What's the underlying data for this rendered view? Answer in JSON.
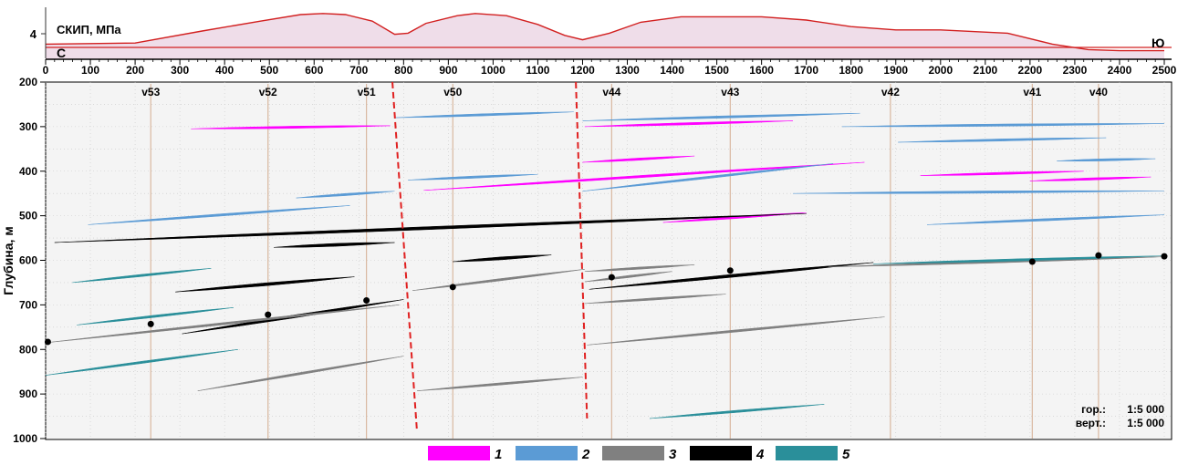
{
  "top_panel": {
    "title": "СКИП, МПа",
    "y_tick": "4",
    "left_end": "С",
    "right_end": "Ю"
  },
  "x_axis": {
    "min": 0,
    "max": 2500,
    "ticks": [
      "0",
      "100",
      "200",
      "300",
      "400",
      "500",
      "600",
      "700",
      "800",
      "900",
      "1000",
      "1100",
      "1200",
      "1300",
      "1400",
      "1500",
      "1600",
      "1700",
      "1800",
      "1900",
      "2000",
      "2100",
      "2200",
      "2300",
      "2400",
      "2500"
    ]
  },
  "y_axis": {
    "label": "Глубина, м",
    "min": 200,
    "max": 1000,
    "ticks": [
      "200",
      "300",
      "400",
      "500",
      "600",
      "700",
      "800",
      "900",
      "1000"
    ]
  },
  "scale": {
    "hor_label": "гор.:",
    "hor_value": "1:5 000",
    "vert_label": "верт.:",
    "vert_value": "1:5 000"
  },
  "legend": [
    {
      "label": "1",
      "color": "#ff00ff"
    },
    {
      "label": "2",
      "color": "#5b9bd5"
    },
    {
      "label": "3",
      "color": "#808080"
    },
    {
      "label": "4",
      "color": "#000000"
    },
    {
      "label": "5",
      "color": "#2a8f9a"
    }
  ],
  "chart_data": {
    "type": "line",
    "colors": {
      "pressure_line": "#d22020",
      "pressure_fill": "#efdde9",
      "fault": "#e02020",
      "well": "#d9b8a0"
    },
    "pressure_profile": [
      [
        0,
        3.4
      ],
      [
        200,
        3.45
      ],
      [
        350,
        4.0
      ],
      [
        480,
        4.45
      ],
      [
        570,
        4.75
      ],
      [
        620,
        4.8
      ],
      [
        670,
        4.75
      ],
      [
        730,
        4.45
      ],
      [
        780,
        3.85
      ],
      [
        810,
        3.9
      ],
      [
        850,
        4.35
      ],
      [
        920,
        4.7
      ],
      [
        960,
        4.8
      ],
      [
        1030,
        4.7
      ],
      [
        1100,
        4.3
      ],
      [
        1160,
        3.8
      ],
      [
        1200,
        3.6
      ],
      [
        1260,
        3.9
      ],
      [
        1330,
        4.4
      ],
      [
        1420,
        4.65
      ],
      [
        1600,
        4.65
      ],
      [
        1700,
        4.5
      ],
      [
        1800,
        4.2
      ],
      [
        1900,
        4.05
      ],
      [
        2000,
        4.05
      ],
      [
        2150,
        3.9
      ],
      [
        2250,
        3.4
      ],
      [
        2330,
        3.15
      ],
      [
        2400,
        3.1
      ],
      [
        2500,
        3.1
      ]
    ],
    "wells": [
      {
        "name": "v53",
        "x": 235
      },
      {
        "name": "v52",
        "x": 497
      },
      {
        "name": "v51",
        "x": 717
      },
      {
        "name": "v50",
        "x": 910
      },
      {
        "name": "v44",
        "x": 1265
      },
      {
        "name": "v43",
        "x": 1530
      },
      {
        "name": "v42",
        "x": 1888
      },
      {
        "name": "v41",
        "x": 2205
      },
      {
        "name": "v40",
        "x": 2353
      }
    ],
    "faults": [
      {
        "top": [
          775,
          200
        ],
        "bottom": [
          830,
          985
        ]
      },
      {
        "top": [
          1185,
          200
        ],
        "bottom": [
          1210,
          955
        ]
      }
    ],
    "seams": [
      {
        "class": 1,
        "from": [
          325,
          305
        ],
        "to": [
          770,
          298
        ]
      },
      {
        "class": 2,
        "from": [
          780,
          280
        ],
        "to": [
          1180,
          267
        ]
      },
      {
        "class": 2,
        "from": [
          1200,
          287
        ],
        "to": [
          1820,
          270
        ]
      },
      {
        "class": 1,
        "from": [
          1205,
          300
        ],
        "to": [
          1670,
          287
        ]
      },
      {
        "class": 2,
        "from": [
          1780,
          300
        ],
        "to": [
          2500,
          293
        ]
      },
      {
        "class": 2,
        "from": [
          1905,
          335
        ],
        "to": [
          2370,
          325
        ]
      },
      {
        "class": 1,
        "from": [
          1200,
          380
        ],
        "to": [
          1450,
          366
        ]
      },
      {
        "class": 2,
        "from": [
          2260,
          377
        ],
        "to": [
          2480,
          372
        ]
      },
      {
        "class": 1,
        "from": [
          1955,
          410
        ],
        "to": [
          2320,
          400
        ]
      },
      {
        "class": 1,
        "from": [
          2200,
          422
        ],
        "to": [
          2470,
          413
        ]
      },
      {
        "class": 2,
        "from": [
          810,
          420
        ],
        "to": [
          1100,
          407
        ]
      },
      {
        "class": 1,
        "from": [
          845,
          443
        ],
        "to": [
          1830,
          380
        ]
      },
      {
        "class": 2,
        "from": [
          1200,
          445
        ],
        "to": [
          1760,
          383
        ]
      },
      {
        "class": 2,
        "from": [
          560,
          460
        ],
        "to": [
          780,
          445
        ]
      },
      {
        "class": 2,
        "from": [
          1670,
          450
        ],
        "to": [
          2500,
          444
        ]
      },
      {
        "class": 2,
        "from": [
          95,
          520
        ],
        "to": [
          680,
          477
        ]
      },
      {
        "class": 2,
        "from": [
          1970,
          520
        ],
        "to": [
          2500,
          498
        ]
      },
      {
        "class": 1,
        "from": [
          1380,
          515
        ],
        "to": [
          1700,
          493
        ]
      },
      {
        "class": 4,
        "from": [
          20,
          560
        ],
        "to": [
          1700,
          495
        ]
      },
      {
        "class": 4,
        "from": [
          510,
          571
        ],
        "to": [
          780,
          560
        ]
      },
      {
        "class": 4,
        "from": [
          910,
          603
        ],
        "to": [
          1130,
          588
        ]
      },
      {
        "class": 3,
        "from": [
          1205,
          625
        ],
        "to": [
          1450,
          610
        ]
      },
      {
        "class": 3,
        "from": [
          1205,
          648
        ],
        "to": [
          1400,
          625
        ]
      },
      {
        "class": 4,
        "from": [
          1215,
          665
        ],
        "to": [
          1850,
          605
        ]
      },
      {
        "class": 3,
        "from": [
          1750,
          615
        ],
        "to": [
          2500,
          592
        ]
      },
      {
        "class": 5,
        "from": [
          1850,
          608
        ],
        "to": [
          2500,
          590
        ]
      },
      {
        "class": 3,
        "from": [
          820,
          668
        ],
        "to": [
          1205,
          620
        ]
      },
      {
        "class": 4,
        "from": [
          290,
          671
        ],
        "to": [
          690,
          637
        ]
      },
      {
        "class": 5,
        "from": [
          60,
          650
        ],
        "to": [
          370,
          618
        ]
      },
      {
        "class": 3,
        "from": [
          1205,
          697
        ],
        "to": [
          1520,
          676
        ]
      },
      {
        "class": 5,
        "from": [
          70,
          745
        ],
        "to": [
          420,
          706
        ]
      },
      {
        "class": 4,
        "from": [
          305,
          765
        ],
        "to": [
          800,
          688
        ]
      },
      {
        "class": 3,
        "from": [
          0,
          785
        ],
        "to": [
          790,
          700
        ]
      },
      {
        "class": 3,
        "from": [
          1210,
          790
        ],
        "to": [
          1875,
          727
        ]
      },
      {
        "class": 5,
        "from": [
          0,
          858
        ],
        "to": [
          430,
          800
        ]
      },
      {
        "class": 3,
        "from": [
          340,
          893
        ],
        "to": [
          800,
          815
        ]
      },
      {
        "class": 3,
        "from": [
          830,
          893
        ],
        "to": [
          1200,
          862
        ]
      },
      {
        "class": 5,
        "from": [
          1350,
          955
        ],
        "to": [
          1740,
          923
        ]
      }
    ],
    "points": [
      {
        "x": 5,
        "y": 783
      },
      {
        "x": 235,
        "y": 743
      },
      {
        "x": 497,
        "y": 722
      },
      {
        "x": 717,
        "y": 690
      },
      {
        "x": 910,
        "y": 660
      },
      {
        "x": 1265,
        "y": 638
      },
      {
        "x": 1530,
        "y": 623
      },
      {
        "x": 2205,
        "y": 603
      },
      {
        "x": 2353,
        "y": 589
      },
      {
        "x": 2500,
        "y": 591
      }
    ]
  }
}
